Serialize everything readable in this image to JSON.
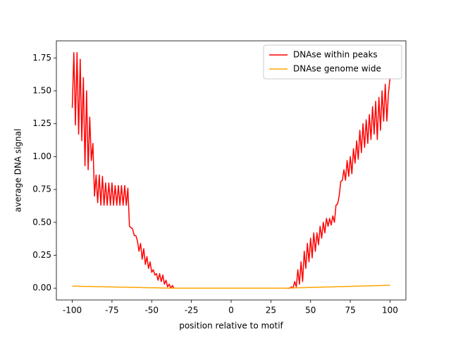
{
  "chart_data": {
    "type": "line",
    "xlabel": "position relative to motif",
    "ylabel": "average DNA signal",
    "x": [
      -100,
      -99,
      -98,
      -97,
      -96,
      -95,
      -94,
      -93,
      -92,
      -91,
      -90,
      -89,
      -88,
      -87,
      -86,
      -85,
      -84,
      -83,
      -82,
      -81,
      -80,
      -79,
      -78,
      -77,
      -76,
      -75,
      -74,
      -73,
      -72,
      -71,
      -70,
      -69,
      -68,
      -67,
      -66,
      -65,
      -64,
      -63,
      -62,
      -61,
      -60,
      -59,
      -58,
      -57,
      -56,
      -55,
      -54,
      -53,
      -52,
      -51,
      -50,
      -49,
      -48,
      -47,
      -46,
      -45,
      -44,
      -43,
      -42,
      -41,
      -40,
      -39,
      -38,
      -37,
      -36,
      -35,
      -34,
      -33,
      -32,
      -31,
      -30,
      -29,
      -28,
      -27,
      -26,
      -25,
      -24,
      -23,
      -22,
      -21,
      -20,
      -19,
      -18,
      -17,
      -16,
      -15,
      -14,
      -13,
      -12,
      -11,
      -10,
      -9,
      -8,
      -7,
      -6,
      -5,
      -4,
      -3,
      -2,
      -1,
      0,
      1,
      2,
      3,
      4,
      5,
      6,
      7,
      8,
      9,
      10,
      11,
      12,
      13,
      14,
      15,
      16,
      17,
      18,
      19,
      20,
      21,
      22,
      23,
      24,
      25,
      26,
      27,
      28,
      29,
      30,
      31,
      32,
      33,
      34,
      35,
      36,
      37,
      38,
      39,
      40,
      41,
      42,
      43,
      44,
      45,
      46,
      47,
      48,
      49,
      50,
      51,
      52,
      53,
      54,
      55,
      56,
      57,
      58,
      59,
      60,
      61,
      62,
      63,
      64,
      65,
      66,
      67,
      68,
      69,
      70,
      71,
      72,
      73,
      74,
      75,
      76,
      77,
      78,
      79,
      80,
      81,
      82,
      83,
      84,
      85,
      86,
      87,
      88,
      89,
      90,
      91,
      92,
      93,
      94,
      95,
      96,
      97,
      98,
      99,
      100
    ],
    "series": [
      {
        "name": "DNAse within peaks",
        "color": "#ff0000",
        "values": [
          1.37,
          1.79,
          1.24,
          1.79,
          1.17,
          1.74,
          1.12,
          1.6,
          0.93,
          1.5,
          0.9,
          1.3,
          0.97,
          1.1,
          0.7,
          0.86,
          0.65,
          0.86,
          0.63,
          0.85,
          0.63,
          0.8,
          0.63,
          0.8,
          0.63,
          0.8,
          0.63,
          0.78,
          0.63,
          0.78,
          0.63,
          0.78,
          0.63,
          0.78,
          0.63,
          0.76,
          0.47,
          0.46,
          0.45,
          0.4,
          0.4,
          0.36,
          0.28,
          0.34,
          0.22,
          0.3,
          0.18,
          0.24,
          0.15,
          0.2,
          0.12,
          0.14,
          0.1,
          0.11,
          0.06,
          0.11,
          0.05,
          0.1,
          0.03,
          0.06,
          0.01,
          0.03,
          0,
          0.02,
          0,
          0,
          0,
          0,
          0,
          0,
          0,
          0,
          0,
          0,
          0,
          0,
          0,
          0,
          0,
          0,
          0,
          0,
          0,
          0,
          0,
          0,
          0,
          0,
          0,
          0,
          0,
          0,
          0,
          0,
          0,
          0,
          0,
          0,
          0,
          0,
          0,
          0,
          0,
          0,
          0,
          0,
          0,
          0,
          0,
          0,
          0,
          0,
          0,
          0,
          0,
          0,
          0,
          0,
          0,
          0,
          0,
          0,
          0,
          0,
          0,
          0,
          0,
          0,
          0,
          0,
          0,
          0,
          0,
          0,
          0,
          0,
          0,
          0,
          0.01,
          0,
          0.05,
          0.01,
          0.14,
          0.03,
          0.2,
          0.05,
          0.28,
          0.15,
          0.34,
          0.2,
          0.38,
          0.23,
          0.42,
          0.28,
          0.42,
          0.33,
          0.47,
          0.38,
          0.5,
          0.42,
          0.53,
          0.47,
          0.53,
          0.48,
          0.55,
          0.5,
          0.63,
          0.64,
          0.7,
          0.81,
          0.82,
          0.9,
          0.82,
          0.97,
          0.85,
          1.0,
          0.87,
          1.06,
          0.95,
          1.12,
          0.98,
          1.2,
          1.03,
          1.25,
          1.07,
          1.28,
          1.1,
          1.32,
          1.13,
          1.38,
          1.17,
          1.42,
          1.13,
          1.45,
          1.2,
          1.5,
          1.27,
          1.55,
          1.27,
          1.48,
          1.6
        ]
      },
      {
        "name": "DNAse genome wide",
        "color": "#ffa500",
        "values": [
          0.015,
          0.015,
          0.015,
          0.015,
          0.014,
          0.014,
          0.014,
          0.014,
          0.013,
          0.013,
          0.013,
          0.013,
          0.012,
          0.012,
          0.012,
          0.012,
          0.011,
          0.011,
          0.011,
          0.011,
          0.01,
          0.01,
          0.01,
          0.01,
          0.009,
          0.009,
          0.009,
          0.009,
          0.008,
          0.008,
          0.008,
          0.008,
          0.007,
          0.007,
          0.007,
          0.007,
          0.006,
          0.006,
          0.006,
          0.006,
          0.005,
          0.005,
          0.005,
          0.005,
          0.004,
          0.004,
          0.004,
          0.004,
          0.003,
          0.003,
          0.003,
          0.003,
          0.002,
          0.002,
          0.002,
          0.002,
          0.001,
          0.001,
          0.001,
          0.001,
          0,
          0,
          0,
          0,
          0,
          0,
          0,
          0,
          0,
          0,
          0,
          0,
          0,
          0,
          0,
          0,
          0,
          0,
          0,
          0,
          0,
          0,
          0,
          0,
          0,
          0,
          0,
          0,
          0,
          0,
          0,
          0,
          0,
          0,
          0,
          0,
          0,
          0,
          0,
          0,
          0,
          0,
          0,
          0,
          0,
          0,
          0,
          0,
          0,
          0,
          0,
          0,
          0,
          0,
          0,
          0,
          0,
          0,
          0,
          0,
          0,
          0,
          0,
          0,
          0,
          0,
          0,
          0,
          0,
          0,
          0,
          0,
          0,
          0,
          0,
          0,
          0.001,
          0.001,
          0.001,
          0.002,
          0.002,
          0.002,
          0.003,
          0.003,
          0.003,
          0.004,
          0.004,
          0.004,
          0.005,
          0.005,
          0.005,
          0.006,
          0.006,
          0.006,
          0.007,
          0.007,
          0.007,
          0.008,
          0.008,
          0.008,
          0.009,
          0.009,
          0.009,
          0.01,
          0.01,
          0.01,
          0.011,
          0.011,
          0.011,
          0.012,
          0.012,
          0.012,
          0.013,
          0.013,
          0.013,
          0.014,
          0.014,
          0.014,
          0.015,
          0.015,
          0.015,
          0.016,
          0.016,
          0.016,
          0.017,
          0.017,
          0.017,
          0.018,
          0.018,
          0.018,
          0.019,
          0.019,
          0.019,
          0.02,
          0.02,
          0.02,
          0.021,
          0.021,
          0.021,
          0.022,
          0.022
        ]
      }
    ],
    "xlim": [
      -110,
      110
    ],
    "ylim": [
      -0.09,
      1.88
    ],
    "xticks": [
      -100,
      -75,
      -50,
      -25,
      0,
      25,
      50,
      75,
      100
    ],
    "yticks": [
      {
        "value": 0,
        "label": "0.00"
      },
      {
        "value": 0.25,
        "label": "0.25"
      },
      {
        "value": 0.5,
        "label": "0.50"
      },
      {
        "value": 0.75,
        "label": "0.75"
      },
      {
        "value": 1,
        "label": "1.00"
      },
      {
        "value": 1.25,
        "label": "1.25"
      },
      {
        "value": 1.5,
        "label": "1.50"
      },
      {
        "value": 1.75,
        "label": "1.75"
      }
    ],
    "legend": "upper right"
  }
}
